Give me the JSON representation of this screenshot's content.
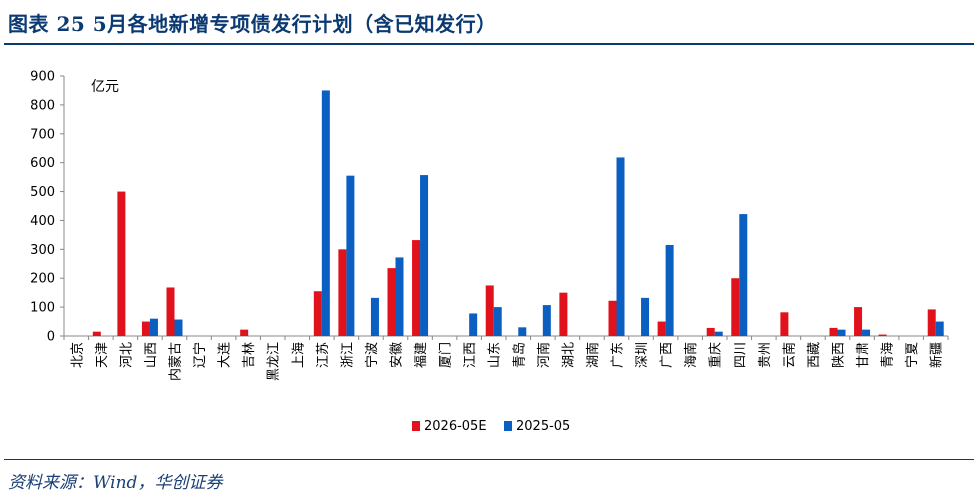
{
  "header": {
    "title": "图表 25   5月各地新增专项债发行计划（含已知发行）"
  },
  "footer": {
    "source": "资料来源：Wind，华创证券"
  },
  "chart_data": {
    "type": "bar",
    "title": "",
    "ylabel": "亿元",
    "xlabel": "",
    "ylim": [
      0,
      900
    ],
    "yticks": [
      0,
      100,
      200,
      300,
      400,
      500,
      600,
      700,
      800,
      900
    ],
    "grid": false,
    "legend": "bottom-center",
    "categories": [
      "北京",
      "天津",
      "河北",
      "山西",
      "内蒙古",
      "辽宁",
      "大连",
      "吉林",
      "黑龙江",
      "上海",
      "江苏",
      "浙江",
      "宁波",
      "安徽",
      "福建",
      "厦门",
      "江西",
      "山东",
      "青岛",
      "河南",
      "湖北",
      "湖南",
      "广东",
      "深圳",
      "广西",
      "海南",
      "重庆",
      "四川",
      "贵州",
      "云南",
      "西藏",
      "陕西",
      "甘肃",
      "青海",
      "宁夏",
      "新疆"
    ],
    "series": [
      {
        "name": "2026-05E",
        "color": "#e0121c",
        "values": [
          0,
          15,
          500,
          50,
          168,
          0,
          0,
          22,
          0,
          0,
          155,
          300,
          0,
          235,
          332,
          0,
          0,
          175,
          0,
          0,
          150,
          0,
          122,
          0,
          50,
          0,
          28,
          200,
          0,
          82,
          0,
          28,
          100,
          5,
          0,
          92
        ]
      },
      {
        "name": "2025-05",
        "color": "#0a5fc0",
        "values": [
          0,
          0,
          0,
          60,
          57,
          0,
          0,
          0,
          0,
          0,
          850,
          555,
          132,
          272,
          557,
          0,
          78,
          100,
          30,
          107,
          0,
          0,
          618,
          132,
          315,
          0,
          15,
          422,
          0,
          0,
          0,
          22,
          22,
          0,
          0,
          50
        ]
      }
    ]
  }
}
